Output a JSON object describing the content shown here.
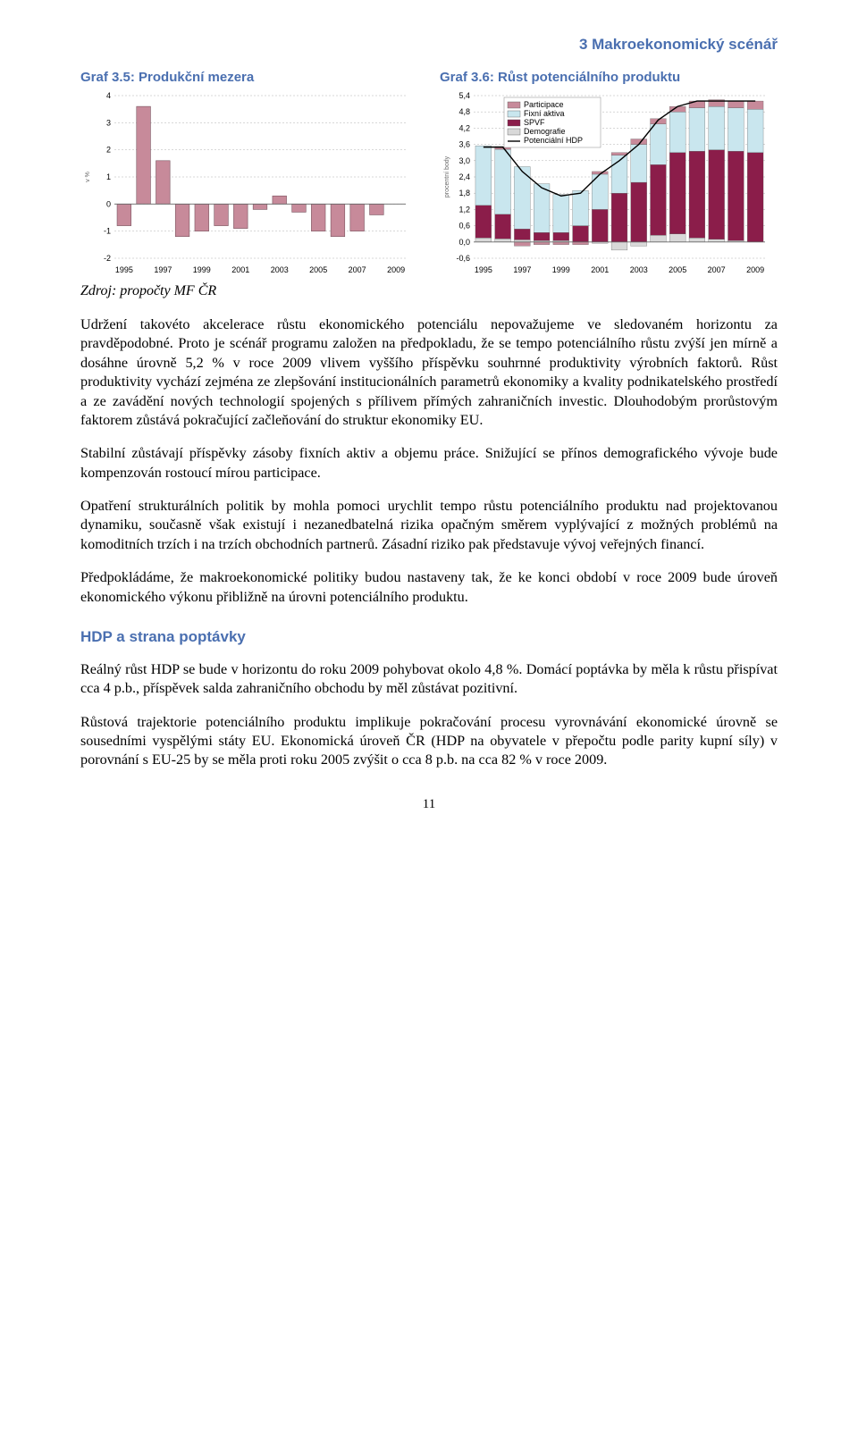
{
  "header": {
    "section_title": "3 Makroekonomický scénář",
    "title_color": "#4a6fb0"
  },
  "charts": {
    "left": {
      "title": "Graf 3.5: Produkční mezera",
      "title_color": "#4a6fb0",
      "type": "bar",
      "years": [
        "1995",
        "1997",
        "1999",
        "2001",
        "2003",
        "2005",
        "2007",
        "2009"
      ],
      "values": [
        -0.8,
        3.6,
        1.6,
        -1.2,
        -1.0,
        -0.8,
        -0.9,
        -0.2,
        0.3,
        -0.3,
        -1.0,
        -1.2,
        -1.0,
        -0.4,
        0.0
      ],
      "bar_color": "#c78a9a",
      "ylim": [
        -2,
        4
      ],
      "ytick_step": 1,
      "ylabel": "v %",
      "grid_color": "#b0b0b0",
      "background": "#ffffff"
    },
    "right": {
      "title": "Graf 3.6: Růst potenciálního produktu",
      "title_color": "#4a6fb0",
      "type": "stacked-bar-with-line",
      "years": [
        "1995",
        "1997",
        "1999",
        "2001",
        "2003",
        "2005",
        "2007",
        "2009"
      ],
      "ylim": [
        -0.6,
        5.4
      ],
      "ytick_step": 0.6,
      "ylabel": "procentní body",
      "grid_color": "#b0b0b0",
      "components": [
        {
          "name": "Participace",
          "color": "#c78a9a"
        },
        {
          "name": "Fixní aktiva",
          "color": "#c9e6ee"
        },
        {
          "name": "SPVF",
          "color": "#8b1d4a"
        },
        {
          "name": "Demografie",
          "color": "#d9d9d9"
        },
        {
          "name": "Potenciální HDP",
          "color": "#000000"
        }
      ],
      "data": [
        {
          "part": 0.0,
          "fix": 2.2,
          "spvf": 1.2,
          "demo": 0.15,
          "line": 3.5
        },
        {
          "part": 0.1,
          "fix": 2.4,
          "spvf": 0.9,
          "demo": 0.12,
          "line": 3.5
        },
        {
          "part": -0.15,
          "fix": 2.3,
          "spvf": 0.4,
          "demo": 0.08,
          "line": 2.6
        },
        {
          "part": -0.1,
          "fix": 1.8,
          "spvf": 0.3,
          "demo": 0.05,
          "line": 2.0
        },
        {
          "part": -0.1,
          "fix": 1.4,
          "spvf": 0.3,
          "demo": 0.05,
          "line": 1.7
        },
        {
          "part": -0.1,
          "fix": 1.3,
          "spvf": 0.6,
          "demo": 0.0,
          "line": 1.8
        },
        {
          "part": 0.1,
          "fix": 1.3,
          "spvf": 1.2,
          "demo": -0.05,
          "line": 2.5
        },
        {
          "part": 0.1,
          "fix": 1.4,
          "spvf": 1.8,
          "demo": -0.3,
          "line": 3.0
        },
        {
          "part": 0.2,
          "fix": 1.4,
          "spvf": 2.2,
          "demo": -0.15,
          "line": 3.6
        },
        {
          "part": 0.2,
          "fix": 1.5,
          "spvf": 2.6,
          "demo": 0.25,
          "line": 4.5
        },
        {
          "part": 0.2,
          "fix": 1.5,
          "spvf": 3.0,
          "demo": 0.3,
          "line": 5.0
        },
        {
          "part": 0.25,
          "fix": 1.6,
          "spvf": 3.2,
          "demo": 0.15,
          "line": 5.2
        },
        {
          "part": 0.25,
          "fix": 1.6,
          "spvf": 3.3,
          "demo": 0.1,
          "line": 5.2
        },
        {
          "part": 0.25,
          "fix": 1.6,
          "spvf": 3.3,
          "demo": 0.05,
          "line": 5.2
        },
        {
          "part": 0.3,
          "fix": 1.6,
          "spvf": 3.3,
          "demo": 0.0,
          "line": 5.2
        }
      ]
    }
  },
  "source": "Zdroj: propočty MF ČR",
  "paragraphs": {
    "p1": "Udržení takovéto akcelerace růstu ekonomického potenciálu nepovažujeme ve sledovaném horizontu za pravděpodobné. Proto je scénář programu založen na předpokladu, že se tempo potenciálního růstu zvýší jen mírně a dosáhne úrovně 5,2 % v roce 2009 vlivem vyššího příspěvku souhrnné produktivity výrobních faktorů. Růst produktivity vychází zejména ze zlepšování institucionálních parametrů ekonomiky a kvality podnikatelského prostředí a ze zavádění nových technologií spojených s přílivem přímých zahraničních investic. Dlouhodobým prorůstovým faktorem zůstává pokračující začleňování do struktur ekonomiky EU.",
    "p2": "Stabilní zůstávají příspěvky zásoby fixních aktiv a objemu práce. Snižující se přínos demografického vývoje bude kompenzován rostoucí mírou participace.",
    "p3": "Opatření strukturálních politik by mohla pomoci urychlit tempo růstu potenciálního produktu nad projektovanou dynamiku, současně však existují i nezanedbatelná rizika opačným směrem vyplývající z možných problémů na komoditních trzích i na trzích obchodních partnerů. Zásadní riziko pak představuje vývoj veřejných financí.",
    "p4": "Předpokládáme, že makroekonomické politiky budou nastaveny tak, že ke konci období v roce 2009 bude úroveň ekonomického výkonu přibližně na úrovni potenciálního produktu.",
    "p5": "Reálný růst HDP se bude v horizontu do roku 2009 pohybovat okolo 4,8 %. Domácí poptávka by měla k růstu přispívat cca 4 p.b., příspěvek salda zahraničního obchodu by měl zůstávat pozitivní.",
    "p6": "Růstová trajektorie potenciálního produktu implikuje pokračování procesu vyrovnávání ekonomické úrovně se sousedními vyspělými státy EU. Ekonomická úroveň ČR (HDP na obyvatele v přepočtu podle parity kupní síly) v porovnání s EU-25 by se měla proti roku 2005 zvýšit o cca 8 p.b. na cca 82 % v roce 2009."
  },
  "section2": {
    "title": "HDP a strana poptávky",
    "color": "#4a6fb0"
  },
  "page_number": "11"
}
